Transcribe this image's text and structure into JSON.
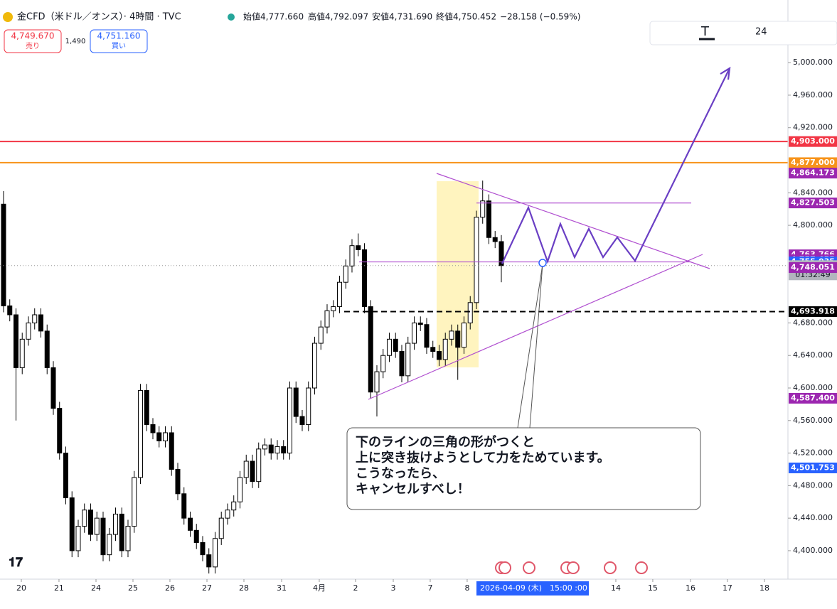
{
  "chart_data": {
    "type": "candlestick",
    "header": {
      "symbol": "金CFD（米ドル／オンス）· 4時間 · TVC",
      "open": "始値4,777.660",
      "high": "高値4,792.097",
      "low": "安値4,731.690",
      "close": "終値4,750.452",
      "change": "−28.158 (−0.59%)"
    },
    "trade": {
      "sell_price": "4,749.670",
      "sell": "売り",
      "spread": "1,490",
      "buy_price": "4,751.160",
      "buy": "買い"
    },
    "toolbar": {
      "size": "24"
    },
    "open": [
      4826,
      4701,
      4690,
      4625,
      4660,
      4680,
      4690,
      4670,
      4625,
      4575,
      4520,
      4465,
      4400,
      4430,
      4450,
      4420,
      4440,
      4395,
      4420,
      4445,
      4400,
      4430,
      4490,
      4597,
      4555,
      4545,
      4535,
      4545,
      4500,
      4470,
      4440,
      4425,
      4410,
      4395,
      4380,
      4415,
      4440,
      4450,
      4460,
      4490,
      4510,
      4485,
      4525,
      4530,
      4520,
      4528,
      4520,
      4600,
      4565,
      4555,
      4600,
      4655,
      4675,
      4695,
      4700,
      4730,
      4750,
      4775,
      4770,
      4700,
      4595,
      4620,
      4640,
      4660,
      4645,
      4615,
      4655,
      4680,
      4678,
      4650,
      4645,
      4635,
      4660,
      4670,
      4650,
      4680,
      4705,
      4810,
      4830,
      4785,
      4780
    ],
    "high": [
      4842,
      4709,
      4698,
      4668,
      4688,
      4698,
      4698,
      4678,
      4633,
      4583,
      4528,
      4473,
      4438,
      4458,
      4458,
      4448,
      4448,
      4428,
      4453,
      4453,
      4438,
      4498,
      4605,
      4605,
      4563,
      4553,
      4553,
      4553,
      4508,
      4478,
      4448,
      4433,
      4418,
      4403,
      4423,
      4448,
      4458,
      4468,
      4498,
      4518,
      4518,
      4533,
      4538,
      4538,
      4536,
      4536,
      4608,
      4608,
      4573,
      4608,
      4663,
      4683,
      4703,
      4708,
      4738,
      4758,
      4783,
      4790,
      4778,
      4708,
      4628,
      4648,
      4668,
      4668,
      4653,
      4663,
      4688,
      4688,
      4686,
      4658,
      4653,
      4668,
      4678,
      4678,
      4688,
      4713,
      4818,
      4855,
      4838,
      4793,
      4788
    ],
    "low": [
      4693,
      4682,
      4560,
      4617,
      4652,
      4672,
      4662,
      4617,
      4567,
      4512,
      4457,
      4392,
      4392,
      4422,
      4412,
      4412,
      4387,
      4387,
      4412,
      4392,
      4392,
      4422,
      4482,
      4547,
      4537,
      4527,
      4527,
      4492,
      4462,
      4432,
      4417,
      4402,
      4387,
      4372,
      4372,
      4407,
      4432,
      4442,
      4452,
      4482,
      4477,
      4477,
      4517,
      4512,
      4512,
      4512,
      4512,
      4557,
      4547,
      4547,
      4592,
      4647,
      4667,
      4687,
      4692,
      4722,
      4742,
      4762,
      4692,
      4587,
      4565,
      4612,
      4632,
      4637,
      4607,
      4607,
      4647,
      4670,
      4642,
      4637,
      4627,
      4627,
      4652,
      4610,
      4642,
      4672,
      4697,
      4802,
      4777,
      4772,
      4730
    ],
    "close": [
      4701,
      4690,
      4625,
      4660,
      4680,
      4690,
      4670,
      4625,
      4575,
      4520,
      4465,
      4400,
      4430,
      4450,
      4420,
      4440,
      4395,
      4420,
      4445,
      4400,
      4430,
      4490,
      4597,
      4555,
      4545,
      4535,
      4545,
      4500,
      4470,
      4440,
      4425,
      4410,
      4395,
      4380,
      4415,
      4440,
      4450,
      4460,
      4490,
      4510,
      4485,
      4525,
      4530,
      4520,
      4528,
      4520,
      4600,
      4565,
      4555,
      4600,
      4655,
      4675,
      4695,
      4700,
      4730,
      4750,
      4775,
      4770,
      4700,
      4595,
      4620,
      4640,
      4660,
      4645,
      4615,
      4655,
      4680,
      4678,
      4650,
      4645,
      4635,
      4660,
      4670,
      4650,
      4680,
      4705,
      4810,
      4830,
      4785,
      4780,
      4750.452
    ],
    "xlim": [
      -0.57,
      126.06
    ],
    "xticks": [
      {
        "value": 2.86,
        "label": "20"
      },
      {
        "value": 8.91,
        "label": "21"
      },
      {
        "value": 14.86,
        "label": "24"
      },
      {
        "value": 20.8,
        "label": "25"
      },
      {
        "value": 26.74,
        "label": "26"
      },
      {
        "value": 32.69,
        "label": "27"
      },
      {
        "value": 38.63,
        "label": "28"
      },
      {
        "value": 44.69,
        "label": "31"
      },
      {
        "value": 50.74,
        "label": "4月"
      },
      {
        "value": 56.57,
        "label": "2"
      },
      {
        "value": 62.63,
        "label": "3"
      },
      {
        "value": 68.57,
        "label": "7"
      },
      {
        "value": 74.51,
        "label": "8"
      },
      {
        "value": 98.4,
        "label": "14"
      },
      {
        "value": 104.34,
        "label": "15"
      },
      {
        "value": 110.4,
        "label": "16"
      },
      {
        "value": 116.34,
        "label": "17"
      },
      {
        "value": 122.29,
        "label": "18"
      }
    ],
    "crosshair_label": "2026-04-09 (木)　15:00 :00",
    "ylim": [
      4365,
      5077
    ],
    "yticks": [
      {
        "value": 5000,
        "label": "5,000.000"
      },
      {
        "value": 4960,
        "label": "4,960.000"
      },
      {
        "value": 4920,
        "label": "4,920.000"
      },
      {
        "value": 4840,
        "label": "4,840.000"
      },
      {
        "value": 4800,
        "label": "4,800.000"
      },
      {
        "value": 4680,
        "label": "4,680.000"
      },
      {
        "value": 4640,
        "label": "4,640.000"
      },
      {
        "value": 4600,
        "label": "4,600.000"
      },
      {
        "value": 4560,
        "label": "4,560.000"
      },
      {
        "value": 4520,
        "label": "4,520.000"
      },
      {
        "value": 4480,
        "label": "4,480.000"
      },
      {
        "value": 4440,
        "label": "4,440.000"
      },
      {
        "value": 4400,
        "label": "4,400.000"
      }
    ],
    "price_labels": [
      {
        "value": 4903,
        "label": "4,903.000",
        "color": "#f23645",
        "line": "solid"
      },
      {
        "value": 4877,
        "label": "4,877.000",
        "color": "#f7931a",
        "line": "solid"
      },
      {
        "value": 4864.173,
        "label": "4,864.173",
        "color": "#9c27b0"
      },
      {
        "value": 4827.503,
        "label": "4,827.503",
        "color": "#9c27b0",
        "line": "segment"
      },
      {
        "value": 4763.766,
        "label": "4,763.766",
        "color": "#9c27b0"
      },
      {
        "value": 4757.655,
        "label": "4,757.655",
        "color": "#9c27b0"
      },
      {
        "value": 4755.035,
        "label": "4,755.035",
        "color": "#2962ff",
        "line": "segment"
      },
      {
        "value": 4750.452,
        "label": "4,750.452",
        "color": "#b2b5be",
        "line": "dotted",
        "timer": "01:32:49"
      },
      {
        "value": 4748.051,
        "label": "4,748.051",
        "color": "#9c27b0"
      },
      {
        "value": 4693.918,
        "label": "4,693.918",
        "color": "#000000",
        "line": "dashed"
      },
      {
        "value": 4587.4,
        "label": "4,587.400",
        "color": "#9c27b0"
      },
      {
        "value": 4501.753,
        "label": "4,501.753",
        "color": "#2962ff"
      }
    ],
    "callout": [
      "下のラインの三角の形がつくと",
      "上に突き抜けようとして力をためています。",
      "こうなったら、",
      "キャンセルすべし！"
    ]
  }
}
